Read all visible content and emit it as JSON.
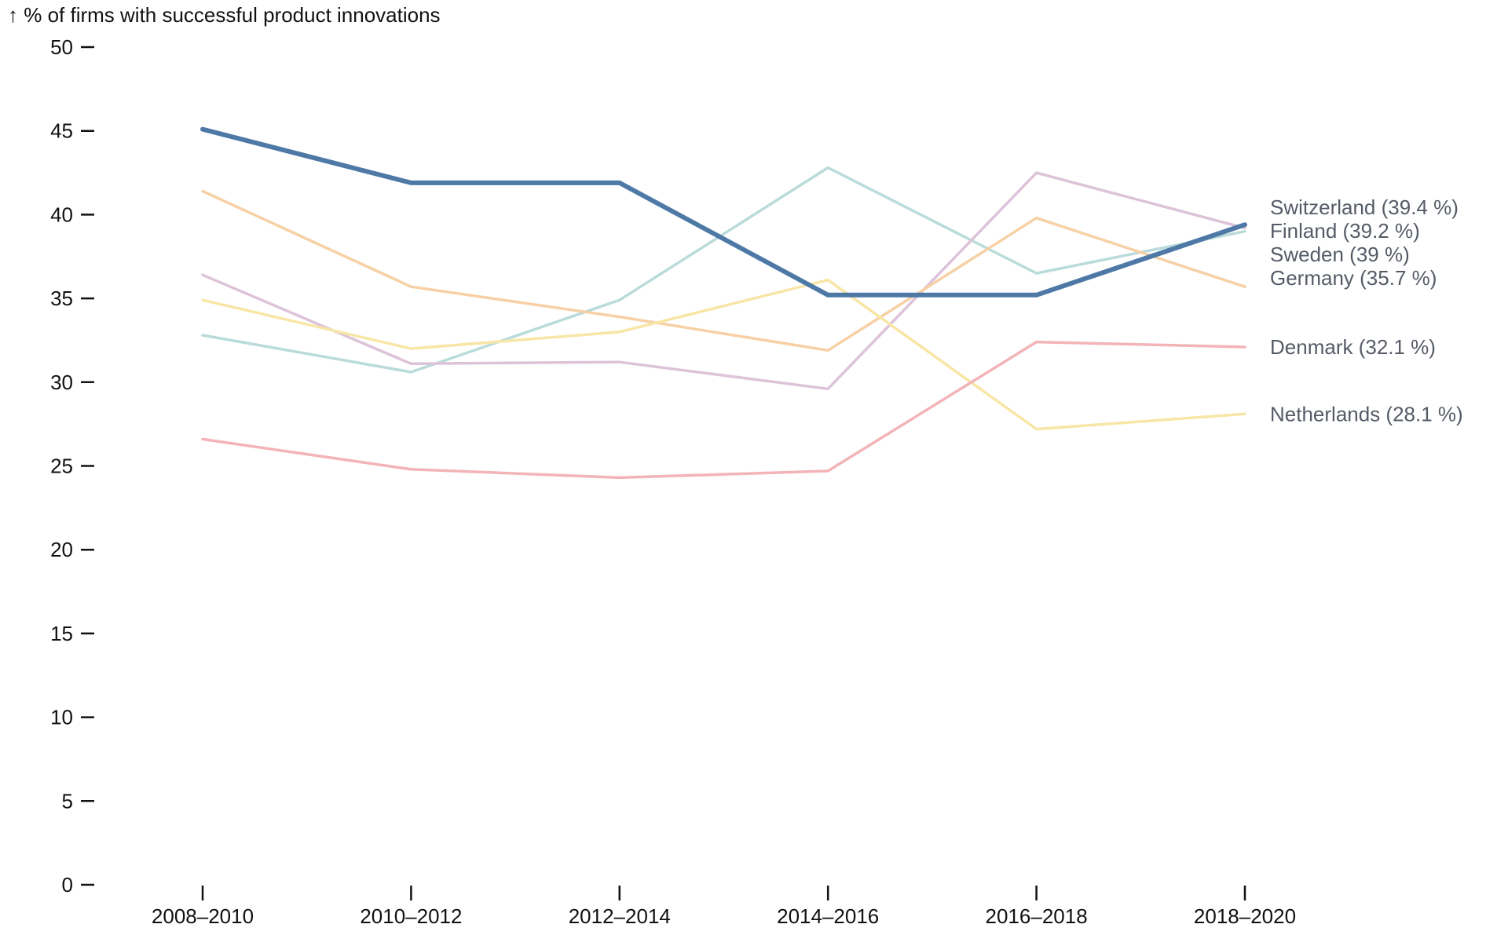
{
  "chart_data": {
    "type": "line",
    "ylabel": "↑ % of firms with successful product innovations",
    "ylim": [
      0,
      50
    ],
    "yticks": [
      0,
      5,
      10,
      15,
      20,
      25,
      30,
      35,
      40,
      45,
      50
    ],
    "categories": [
      "2008–2010",
      "2010–2012",
      "2012–2014",
      "2014–2016",
      "2016–2018",
      "2018–2020"
    ],
    "series": [
      {
        "name": "Sweden",
        "label": "Sweden (39 %)",
        "color": "#b9dcda",
        "highlight": false,
        "values": [
          32.8,
          30.6,
          34.9,
          42.8,
          36.5,
          39.0
        ]
      },
      {
        "name": "Finland",
        "label": "Finland (39.2 %)",
        "color": "#ddc3d9",
        "highlight": false,
        "values": [
          36.4,
          31.1,
          31.2,
          29.6,
          42.5,
          39.2
        ]
      },
      {
        "name": "Germany",
        "label": "Germany (35.7 %)",
        "color": "#f7d0a5",
        "highlight": false,
        "values": [
          41.4,
          35.7,
          33.9,
          31.9,
          39.8,
          35.7
        ]
      },
      {
        "name": "Netherlands",
        "label": "Netherlands (28.1 %)",
        "color": "#f8e6a6",
        "highlight": false,
        "values": [
          34.9,
          32.0,
          33.0,
          36.1,
          27.2,
          28.1
        ]
      },
      {
        "name": "Denmark",
        "label": "Denmark (32.1 %)",
        "color": "#f2b4b8",
        "highlight": false,
        "values": [
          26.6,
          24.8,
          24.3,
          24.7,
          32.4,
          32.1
        ]
      },
      {
        "name": "Switzerland",
        "label": "Switzerland (39.4 %)",
        "color": "#4e79a7",
        "highlight": true,
        "values": [
          45.1,
          41.9,
          41.9,
          35.2,
          35.2,
          39.4
        ]
      }
    ],
    "label_order": [
      "Switzerland",
      "Finland",
      "Sweden",
      "Germany",
      "Denmark",
      "Netherlands"
    ],
    "grid": false,
    "legend": "direct labels at right end of lines"
  }
}
